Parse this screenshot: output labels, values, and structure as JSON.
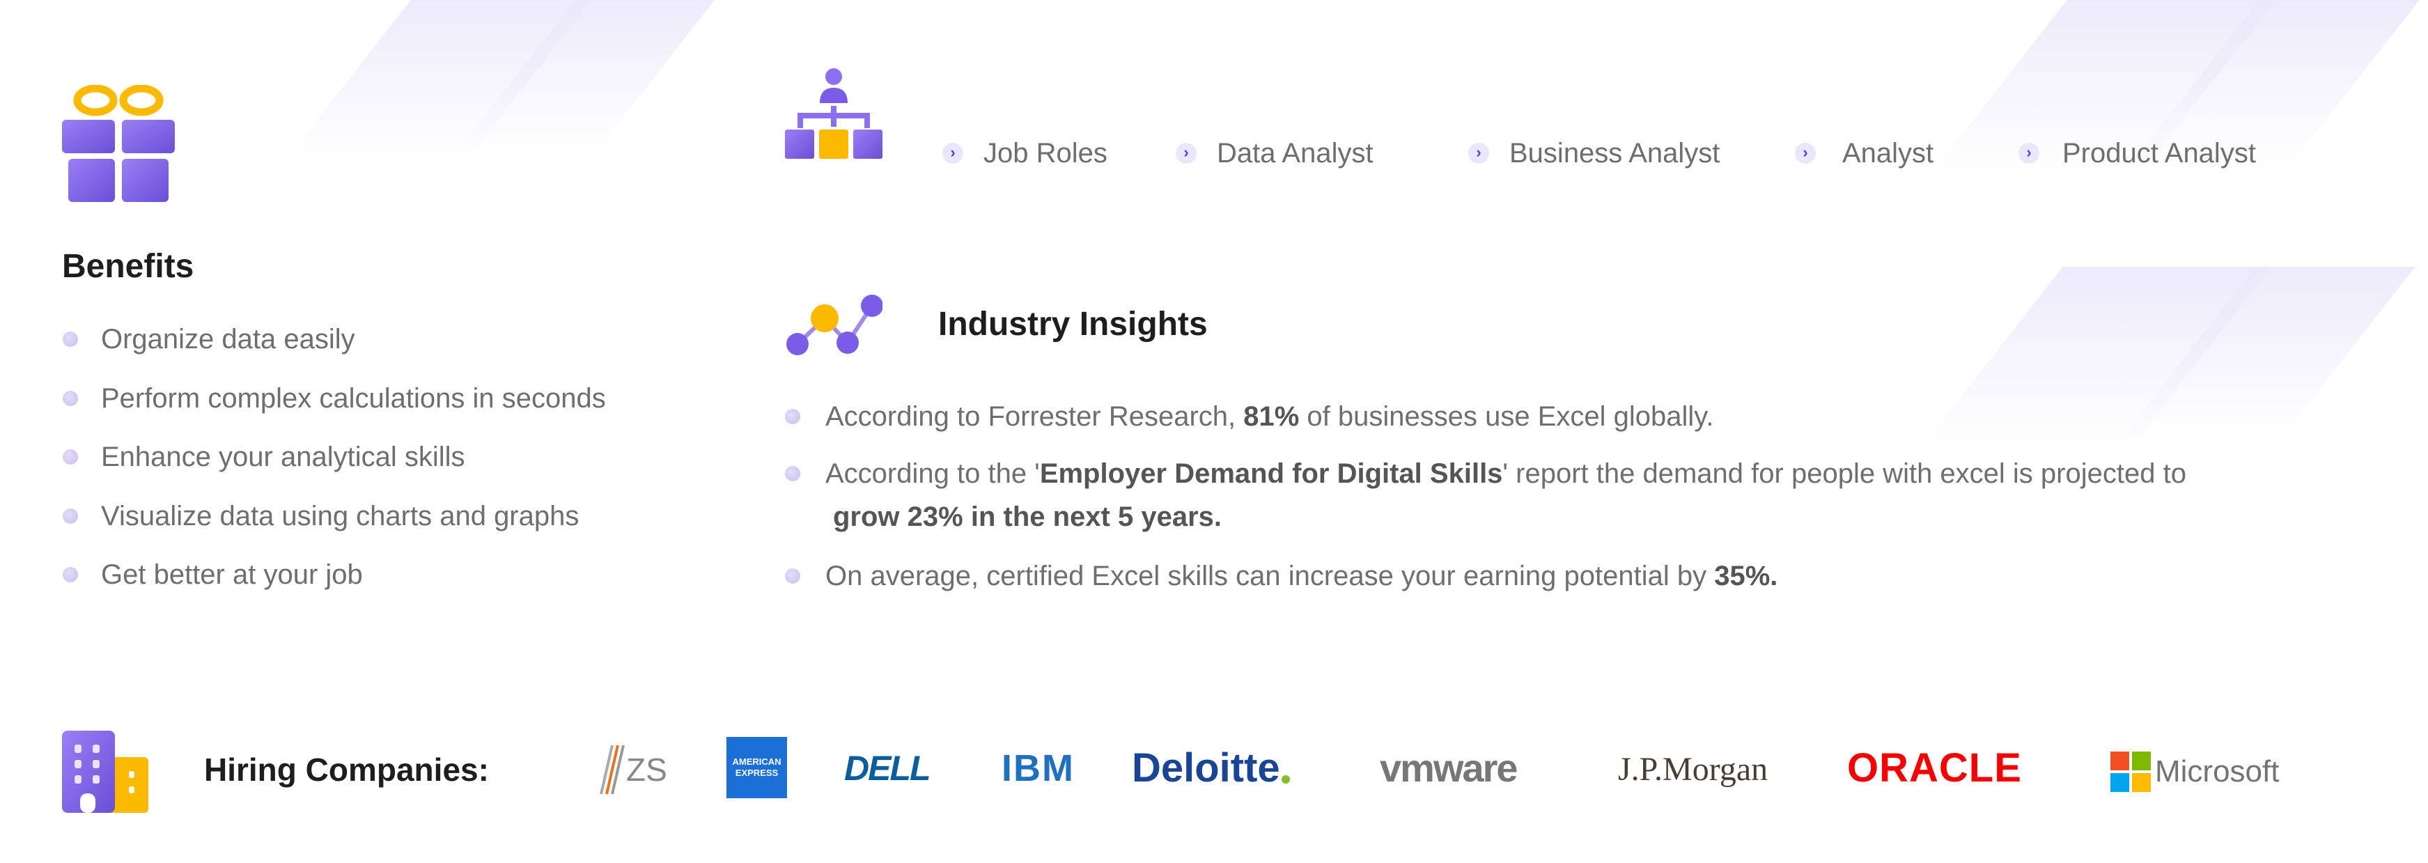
{
  "colors": {
    "purple": "#7b5ce8",
    "yellow": "#fbb900",
    "text": "#6e6e6e",
    "heading": "#1e1e1e"
  },
  "benefits": {
    "icon": "gift-icon",
    "title": "Benefits",
    "items": [
      "Organize data easily",
      "Perform complex calculations in seconds",
      "Enhance your analytical skills",
      "Visualize data using charts and graphs",
      "Get better at your job"
    ]
  },
  "job_roles": {
    "icon": "org-chart-icon",
    "items": [
      "Job Roles",
      "Data Analyst",
      "Business Analyst",
      "Analyst",
      "Product Analyst"
    ]
  },
  "insights": {
    "icon": "network-nodes-icon",
    "title": "Industry Insights",
    "items": [
      {
        "pre": "According to Forrester Research, ",
        "bold": "81%",
        "post": " of businesses use Excel globally."
      },
      {
        "pre": "According to the '",
        "bold": "Employer Demand for Digital Skills",
        "post": "' report the demand for people with excel is projected to",
        "line2": "grow 23% in the next 5 years."
      },
      {
        "pre": "On average, certified Excel skills can increase your earning potential by ",
        "bold": "35%.",
        "post": ""
      }
    ]
  },
  "hiring": {
    "icon": "buildings-icon",
    "label": "Hiring Companies:",
    "companies": [
      {
        "name": "ZS",
        "text": "ZS"
      },
      {
        "name": "American Express",
        "text": "AMERICAN EXPRESS"
      },
      {
        "name": "Dell",
        "text": "DELL"
      },
      {
        "name": "IBM",
        "text": "IBM"
      },
      {
        "name": "Deloitte",
        "text": "Deloitte"
      },
      {
        "name": "VMware",
        "text": "vmware"
      },
      {
        "name": "J.P.Morgan",
        "text": "J.P.Morgan"
      },
      {
        "name": "Oracle",
        "text": "ORACLE"
      },
      {
        "name": "Microsoft",
        "text": "Microsoft"
      }
    ]
  }
}
